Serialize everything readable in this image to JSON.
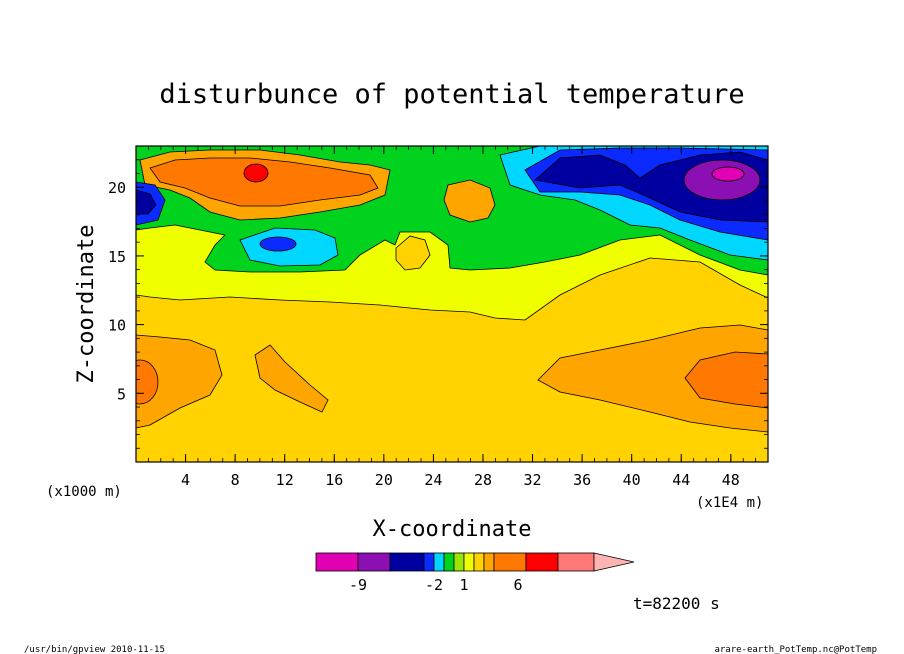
{
  "chart_data": {
    "type": "heatmap",
    "title": "disturbunce of potential temperature",
    "xlabel": "X-coordinate",
    "ylabel": "Z-coordinate",
    "x_unit_left": "(x1000 m)",
    "x_unit_right": "(x1E4 m)",
    "xlim": [
      0,
      51
    ],
    "ylim": [
      0,
      23
    ],
    "xticks": [
      4,
      8,
      12,
      16,
      20,
      24,
      28,
      32,
      36,
      40,
      44,
      48
    ],
    "yticks": [
      5,
      10,
      15,
      20
    ],
    "time_label": "t=82200 s",
    "colorbar": {
      "colors": [
        "#e100b4",
        "#8c0fb4",
        "#0000a0",
        "#0a2aff",
        "#00d7ff",
        "#00d21e",
        "#9be600",
        "#f0ff00",
        "#ffd200",
        "#ffa500",
        "#ff7800",
        "#ff0000",
        "#ff7878",
        "#ffb4b4"
      ],
      "tick_labels": [
        "-9",
        "-2",
        "1",
        "6"
      ]
    },
    "regions": [
      {
        "level": "1 to 2",
        "color": "#ffd200",
        "area": "lower layer z 0-12 across domain"
      },
      {
        "level": "0 to 1",
        "color": "#f0ff00",
        "area": "z 12-17 band"
      },
      {
        "level": "-1 to 0",
        "color": "#00d21e",
        "area": "z 15-23 upper layer"
      },
      {
        "level": "2 to 4",
        "color": "#ffa500",
        "area": "x 0-7 z 3-8 and x 33-51 z 3-9"
      },
      {
        "level": "4 to 6",
        "color": "#ff7800",
        "area": "x 45-51 z 4-7 and upper-left x 3-19 z 19-22"
      },
      {
        "level": ">6",
        "color": "#ff0000",
        "area": "x 9.6 z 20.8"
      },
      {
        "level": "-2 to -1",
        "color": "#00d7ff",
        "area": "x 35-51 z 17-23 and x 10-16 z 15-17"
      },
      {
        "level": "-4 to -2",
        "color": "#0a2aff",
        "area": "x 36-51 z 18-23"
      },
      {
        "level": "-6 to -4",
        "color": "#0000a0",
        "area": "x 40-51 z 18-22 and x 0-2 z 18-20"
      },
      {
        "level": "-9 to -6",
        "color": "#8c0fb4",
        "area": "x 46-50 z 19-22"
      },
      {
        "level": "<-9",
        "color": "#e100b4",
        "area": "x 47 z 20.8"
      }
    ]
  },
  "footer": {
    "left": "/usr/bin/gpview  2010-11-15",
    "right": "arare-earth_PotTemp.nc@PotTemp"
  }
}
